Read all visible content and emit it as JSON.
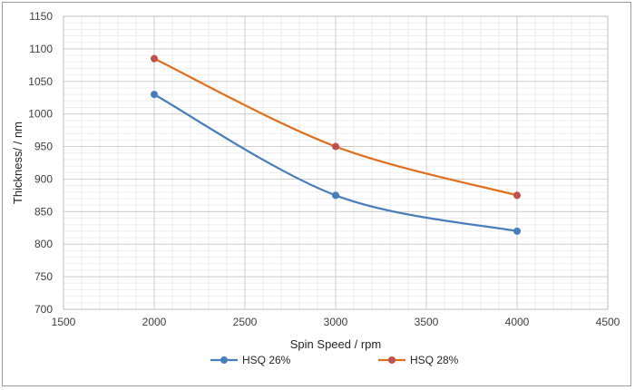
{
  "chart_data": {
    "type": "line",
    "xlabel": "Spin Speed / rpm",
    "ylabel": "Thickness/ / nm",
    "xlim": [
      1500,
      4500
    ],
    "ylim": [
      700,
      1150
    ],
    "xticks": [
      1500,
      2000,
      2500,
      3000,
      3500,
      4000,
      4500
    ],
    "yticks": [
      700,
      750,
      800,
      850,
      900,
      950,
      1000,
      1050,
      1100,
      1150
    ],
    "grid": true,
    "legend_position": "bottom",
    "smooth": true,
    "x": [
      2000,
      3000,
      4000
    ],
    "series": [
      {
        "name": "HSQ 26%",
        "color": "#4a7ebb",
        "values": [
          1030,
          875,
          820
        ]
      },
      {
        "name": "HSQ 28%",
        "color": "#e0701f",
        "marker_color": "#c0504d",
        "values": [
          1085,
          950,
          875
        ]
      }
    ]
  }
}
